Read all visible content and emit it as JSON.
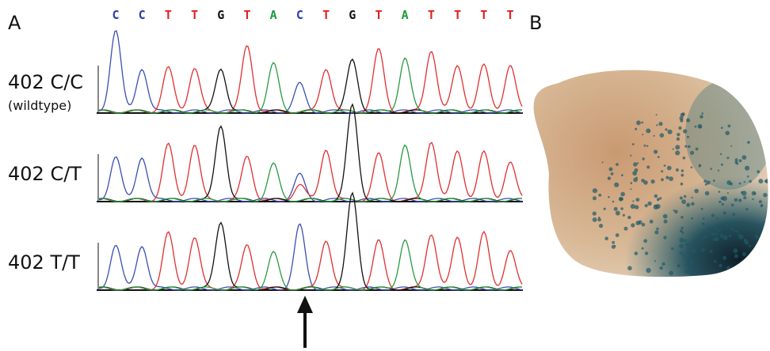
{
  "panel_a": {
    "label": "A",
    "bases": [
      "C",
      "C",
      "T",
      "T",
      "G",
      "T",
      "A",
      "C",
      "T",
      "G",
      "T",
      "A",
      "T",
      "T",
      "T",
      "T"
    ],
    "rows": [
      {
        "label": "402 C/C",
        "sublabel": "(wildtype)"
      },
      {
        "label": "402 C/T"
      },
      {
        "label": "402 T/T"
      }
    ]
  },
  "panel_b": {
    "label": "B"
  }
}
